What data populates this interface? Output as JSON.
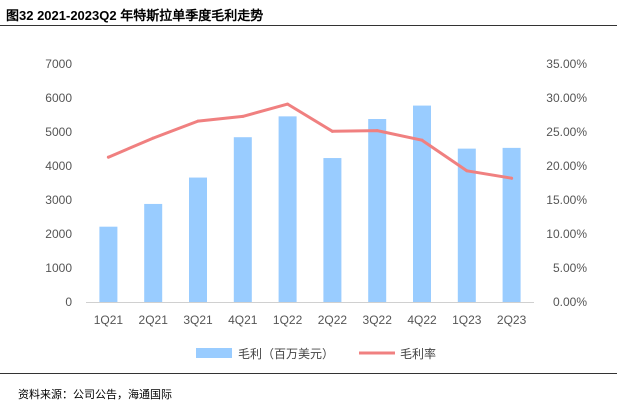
{
  "header": {
    "title": "图32 2021-2023Q2 年特斯拉单季度毛利走势"
  },
  "footer": {
    "source": "资料来源：公司公告，海通国际"
  },
  "colors": {
    "bar": "#99ccff",
    "line": "#f08080",
    "axis_text": "#555555"
  },
  "chart_data": {
    "type": "bar",
    "categories": [
      "1Q21",
      "2Q21",
      "3Q21",
      "4Q21",
      "1Q22",
      "2Q22",
      "3Q22",
      "4Q22",
      "1Q23",
      "2Q23"
    ],
    "series": [
      {
        "name": "毛利（百万美元）",
        "type": "bar",
        "axis": "left",
        "values": [
          2215,
          2884,
          3660,
          4847,
          5460,
          4234,
          5382,
          5777,
          4511,
          4533
        ]
      },
      {
        "name": "毛利率",
        "type": "line",
        "axis": "right",
        "values": [
          0.213,
          0.241,
          0.266,
          0.273,
          0.291,
          0.251,
          0.252,
          0.238,
          0.193,
          0.182
        ]
      }
    ],
    "y_left": {
      "lim": [
        0,
        7000
      ],
      "ticks": [
        0,
        1000,
        2000,
        3000,
        4000,
        5000,
        6000,
        7000
      ],
      "tick_labels": [
        "0",
        "1000",
        "2000",
        "3000",
        "4000",
        "5000",
        "6000",
        "7000"
      ]
    },
    "y_right": {
      "lim": [
        0,
        0.35
      ],
      "ticks": [
        0,
        0.05,
        0.1,
        0.15,
        0.2,
        0.25,
        0.3,
        0.35
      ],
      "tick_labels": [
        "0.00%",
        "5.00%",
        "10.00%",
        "15.00%",
        "20.00%",
        "25.00%",
        "30.00%",
        "35.00%"
      ]
    },
    "grid": false,
    "legend": "bottom"
  }
}
